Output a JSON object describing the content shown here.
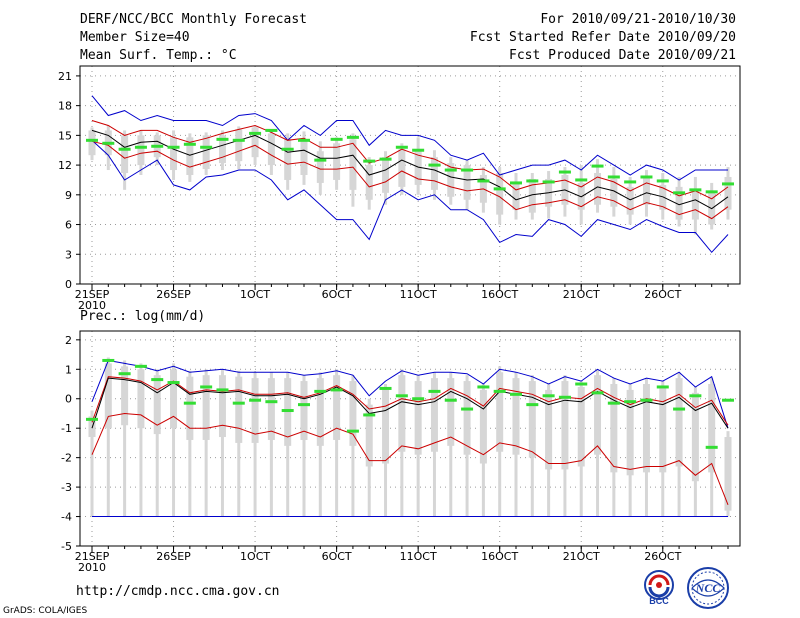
{
  "header": {
    "title": "DERF/NCC/BCC Monthly Forecast",
    "member_size": "Member Size=40",
    "variable": "Mean Surf. Temp.: °C",
    "period": "For 2010/09/21-2010/10/30",
    "start_date": "Fcst Started Refer Date 2010/09/20",
    "produced_date": "Fcst Produced Date 2010/09/21"
  },
  "footer": {
    "url": "http://cmdp.ncc.cma.gov.cn",
    "grads_credit": "GrADS: COLA/IGES",
    "logo_left_text": "BCC",
    "logo_right_text": "NCC"
  },
  "colors": {
    "mean": "#000000",
    "inner_band": "#cc0000",
    "outer_band": "#0000cc",
    "marker": "#33dd33",
    "box": "#d6d6d6",
    "grid": "#9a9a9a"
  },
  "chart_data": [
    {
      "type": "box",
      "title": "Mean Surf. Temp.: °C",
      "xlabel": "",
      "ylabel": "",
      "ylim": [
        0,
        22
      ],
      "yticks": [
        0,
        3,
        6,
        9,
        12,
        15,
        18,
        21
      ],
      "x_tick_labels": [
        {
          "day": 1,
          "label": "21SEP"
        },
        {
          "day": 6,
          "label": "26SEP"
        },
        {
          "day": 11,
          "label": "1OCT"
        },
        {
          "day": 16,
          "label": "6OCT"
        },
        {
          "day": 21,
          "label": "11OCT"
        },
        {
          "day": 26,
          "label": "16OCT"
        },
        {
          "day": 31,
          "label": "21OCT"
        },
        {
          "day": 36,
          "label": "26OCT"
        }
      ],
      "x_year_label": "2010",
      "days": 40,
      "series": [
        {
          "name": "ensemble mean",
          "values": [
            15.5,
            15.0,
            13.8,
            14.3,
            14.4,
            13.6,
            13.0,
            13.5,
            14.0,
            14.5,
            15.0,
            14.2,
            13.3,
            13.5,
            12.7,
            12.7,
            13.0,
            11.0,
            11.5,
            12.5,
            11.8,
            11.5,
            10.8,
            10.5,
            10.6,
            9.8,
            8.5,
            9.0,
            9.2,
            9.5,
            8.8,
            9.8,
            9.4,
            8.5,
            9.2,
            8.8,
            8.0,
            8.5,
            7.6,
            8.8
          ]
        },
        {
          "name": "upper inner",
          "values": [
            16.5,
            16.0,
            15.0,
            15.5,
            15.5,
            14.8,
            14.3,
            14.7,
            15.2,
            15.6,
            16.0,
            15.3,
            14.5,
            14.7,
            13.8,
            13.8,
            14.2,
            12.2,
            12.7,
            13.6,
            13.0,
            12.6,
            11.8,
            11.5,
            11.6,
            10.8,
            9.5,
            10.0,
            10.2,
            10.5,
            9.8,
            10.8,
            10.3,
            9.4,
            10.2,
            9.7,
            8.9,
            9.4,
            8.6,
            9.8
          ]
        },
        {
          "name": "lower inner",
          "values": [
            14.4,
            14.0,
            12.7,
            13.2,
            13.4,
            12.5,
            11.8,
            12.3,
            12.8,
            13.4,
            14.0,
            13.0,
            12.1,
            12.3,
            11.6,
            11.6,
            11.8,
            9.8,
            10.3,
            11.4,
            10.6,
            10.4,
            9.8,
            9.4,
            9.6,
            8.8,
            7.5,
            8.0,
            8.2,
            8.5,
            7.8,
            8.8,
            8.4,
            7.5,
            8.2,
            7.8,
            7.0,
            7.5,
            6.6,
            7.8
          ]
        },
        {
          "name": "maximum",
          "values": [
            19.0,
            17.0,
            17.5,
            16.5,
            17.0,
            16.5,
            16.5,
            16.5,
            16.0,
            17.0,
            17.2,
            16.5,
            14.5,
            16.0,
            15.0,
            16.5,
            16.5,
            14.0,
            15.5,
            15.0,
            15.0,
            14.5,
            13.0,
            12.5,
            13.2,
            11.0,
            11.5,
            12.0,
            12.0,
            12.5,
            11.5,
            13.0,
            12.0,
            11.0,
            12.0,
            11.5,
            10.5,
            11.5,
            11.5,
            11.5
          ]
        },
        {
          "name": "minimum",
          "values": [
            14.5,
            13.0,
            10.5,
            11.5,
            12.5,
            10.0,
            9.5,
            10.8,
            11.0,
            11.5,
            11.5,
            10.5,
            8.5,
            9.5,
            8.0,
            6.5,
            6.5,
            4.5,
            8.5,
            9.5,
            8.5,
            9.0,
            7.5,
            7.5,
            6.5,
            4.2,
            5.0,
            4.8,
            6.5,
            6.0,
            4.8,
            6.5,
            6.0,
            5.5,
            6.5,
            5.8,
            5.2,
            5.2,
            3.2,
            5.0
          ]
        },
        {
          "name": "box upper",
          "values": [
            15.5,
            15.5,
            15.0,
            15.0,
            15.0,
            14.8,
            14.8,
            15.0,
            15.0,
            15.6,
            15.8,
            15.2,
            14.6,
            14.6,
            13.4,
            14.2,
            14.6,
            12.0,
            12.8,
            13.6,
            13.4,
            12.8,
            12.2,
            12.0,
            11.0,
            11.2,
            10.2,
            10.6,
            10.6,
            11.0,
            10.2,
            11.2,
            10.6,
            9.8,
            10.8,
            10.0,
            9.8,
            9.6,
            9.2,
            10.8
          ]
        },
        {
          "name": "box lower",
          "values": [
            13.0,
            13.0,
            11.2,
            12.0,
            12.8,
            11.5,
            11.0,
            11.6,
            12.2,
            12.4,
            12.8,
            12.0,
            10.5,
            11.0,
            10.2,
            10.5,
            9.5,
            8.5,
            9.2,
            9.8,
            10.0,
            9.5,
            8.8,
            8.5,
            8.2,
            7.0,
            7.5,
            7.2,
            7.8,
            8.0,
            7.5,
            8.0,
            7.8,
            7.0,
            8.0,
            7.5,
            6.5,
            6.5,
            6.0,
            7.5
          ]
        },
        {
          "name": "whisker max",
          "values": [
            15.8,
            16.0,
            15.5,
            15.5,
            15.3,
            15.5,
            15.2,
            15.3,
            15.5,
            15.9,
            16.0,
            15.6,
            15.2,
            15.4,
            14.4,
            14.8,
            15.2,
            12.8,
            13.4,
            14.2,
            14.8,
            13.5,
            12.8,
            12.5,
            11.8,
            11.8,
            11.2,
            11.2,
            11.4,
            11.8,
            12.0,
            12.6,
            11.8,
            10.8,
            11.5,
            11.2,
            10.8,
            10.8,
            10.2,
            11.8
          ]
        },
        {
          "name": "whisker min",
          "values": [
            12.5,
            11.5,
            9.5,
            11.0,
            12.0,
            10.5,
            10.3,
            11.0,
            11.5,
            11.6,
            12.0,
            11.0,
            9.5,
            10.0,
            9.0,
            9.5,
            7.8,
            7.5,
            8.0,
            9.0,
            9.0,
            8.5,
            8.0,
            7.5,
            7.2,
            6.0,
            6.5,
            6.5,
            6.6,
            6.8,
            6.0,
            7.2,
            6.8,
            6.0,
            6.8,
            6.5,
            5.8,
            5.0,
            5.5,
            6.5
          ]
        },
        {
          "name": "median marker",
          "values": [
            14.5,
            14.2,
            13.6,
            13.8,
            13.9,
            13.8,
            14.1,
            13.8,
            14.6,
            14.5,
            15.2,
            15.5,
            13.6,
            14.5,
            12.5,
            14.6,
            14.8,
            12.4,
            12.6,
            13.8,
            13.5,
            12.0,
            11.5,
            11.5,
            10.4,
            9.6,
            10.2,
            10.4,
            10.3,
            11.3,
            10.5,
            11.9,
            10.8,
            10.3,
            10.8,
            10.4,
            9.2,
            9.5,
            9.3,
            10.1
          ]
        }
      ]
    },
    {
      "type": "box",
      "title": "Prec.: log(mm/d)",
      "xlabel": "",
      "ylabel": "",
      "ylim": [
        -5,
        2.3
      ],
      "yticks": [
        -5,
        -4,
        -3,
        -2,
        -1,
        0,
        1,
        2
      ],
      "x_tick_labels": [
        {
          "day": 1,
          "label": "21SEP"
        },
        {
          "day": 6,
          "label": "26SEP"
        },
        {
          "day": 11,
          "label": "1OCT"
        },
        {
          "day": 16,
          "label": "6OCT"
        },
        {
          "day": 21,
          "label": "11OCT"
        },
        {
          "day": 26,
          "label": "16OCT"
        },
        {
          "day": 31,
          "label": "21OCT"
        },
        {
          "day": 36,
          "label": "26OCT"
        }
      ],
      "x_year_label": "2010",
      "days": 40,
      "series": [
        {
          "name": "ensemble mean",
          "values": [
            -1.0,
            0.7,
            0.65,
            0.55,
            0.2,
            0.55,
            0.15,
            0.25,
            0.2,
            0.25,
            0.1,
            0.1,
            0.15,
            0.0,
            0.15,
            0.4,
            0.1,
            -0.5,
            -0.4,
            -0.1,
            -0.2,
            -0.1,
            0.25,
            0.0,
            -0.35,
            0.25,
            0.15,
            0.05,
            -0.2,
            -0.05,
            -0.1,
            0.25,
            -0.05,
            -0.3,
            -0.1,
            -0.2,
            0.05,
            -0.4,
            -0.15,
            -1.0
          ]
        },
        {
          "name": "upper inner",
          "values": [
            -0.8,
            0.75,
            0.7,
            0.6,
            0.3,
            0.6,
            0.2,
            0.3,
            0.25,
            0.3,
            0.15,
            0.15,
            0.2,
            0.05,
            0.2,
            0.45,
            0.15,
            -0.35,
            -0.25,
            0.0,
            -0.1,
            0.0,
            0.35,
            0.1,
            -0.25,
            0.35,
            0.25,
            0.15,
            -0.1,
            0.05,
            0.0,
            0.35,
            0.05,
            -0.2,
            0.0,
            -0.1,
            0.15,
            -0.3,
            -0.05,
            -0.9
          ]
        },
        {
          "name": "lower inner",
          "values": [
            -1.9,
            -0.6,
            -0.5,
            -0.55,
            -0.9,
            -0.6,
            -1.0,
            -1.0,
            -0.9,
            -1.0,
            -1.2,
            -1.1,
            -1.3,
            -1.1,
            -1.3,
            -1.0,
            -1.2,
            -2.1,
            -2.1,
            -1.6,
            -1.7,
            -1.5,
            -1.3,
            -1.6,
            -1.9,
            -1.5,
            -1.6,
            -1.8,
            -2.2,
            -2.2,
            -2.1,
            -1.6,
            -2.3,
            -2.4,
            -2.3,
            -2.3,
            -2.1,
            -2.6,
            -2.2,
            -3.6
          ]
        },
        {
          "name": "maximum",
          "values": [
            -0.1,
            1.3,
            1.2,
            1.1,
            0.95,
            1.1,
            0.9,
            0.95,
            1.0,
            0.9,
            0.9,
            0.9,
            0.9,
            0.8,
            0.85,
            0.95,
            0.8,
            0.1,
            0.6,
            0.95,
            0.8,
            0.9,
            0.9,
            0.85,
            0.5,
            1.0,
            0.9,
            0.75,
            0.5,
            0.75,
            0.6,
            1.0,
            0.7,
            0.5,
            0.7,
            0.6,
            0.9,
            0.4,
            0.75,
            -1.0
          ]
        },
        {
          "name": "minimum",
          "values": [
            -4.0,
            -4.0,
            -4.0,
            -4.0,
            -4.0,
            -4.0,
            -4.0,
            -4.0,
            -4.0,
            -4.0,
            -4.0,
            -4.0,
            -4.0,
            -4.0,
            -4.0,
            -4.0,
            -4.0,
            -4.0,
            -4.0,
            -4.0,
            -4.0,
            -4.0,
            -4.0,
            -4.0,
            -4.0,
            -4.0,
            -4.0,
            -4.0,
            -4.0,
            -4.0,
            -4.0,
            -4.0,
            -4.0,
            -4.0,
            -4.0,
            -4.0,
            -4.0,
            -4.0,
            -4.0,
            -4.0
          ]
        },
        {
          "name": "box upper",
          "values": [
            -0.6,
            1.2,
            1.1,
            1.0,
            0.8,
            1.0,
            0.75,
            0.8,
            0.8,
            0.75,
            0.7,
            0.7,
            0.7,
            0.6,
            0.7,
            0.8,
            0.6,
            -0.2,
            0.3,
            0.8,
            0.6,
            0.7,
            0.7,
            0.6,
            0.3,
            0.9,
            0.7,
            0.6,
            0.3,
            0.6,
            0.4,
            0.8,
            0.5,
            0.3,
            0.5,
            0.4,
            0.7,
            0.2,
            0.5,
            -1.3
          ]
        },
        {
          "name": "box lower",
          "values": [
            -1.3,
            -1.0,
            -0.9,
            -1.0,
            -1.2,
            -1.0,
            -1.4,
            -1.4,
            -1.3,
            -1.5,
            -1.5,
            -1.4,
            -1.6,
            -1.4,
            -1.6,
            -1.4,
            -1.6,
            -2.3,
            -2.2,
            -1.8,
            -1.9,
            -1.8,
            -1.6,
            -1.9,
            -2.2,
            -1.8,
            -1.9,
            -2.0,
            -2.4,
            -2.4,
            -2.3,
            -1.9,
            -2.5,
            -2.6,
            -2.5,
            -2.5,
            -2.3,
            -2.8,
            -2.5,
            -3.8
          ]
        },
        {
          "name": "whisker max",
          "values": [
            -0.4,
            1.4,
            1.3,
            1.2,
            1.0,
            1.2,
            0.95,
            1.0,
            1.0,
            0.95,
            0.9,
            0.9,
            0.9,
            0.8,
            0.9,
            1.0,
            0.8,
            0.0,
            0.5,
            1.0,
            0.8,
            0.9,
            0.9,
            0.8,
            0.5,
            1.1,
            0.9,
            0.8,
            0.5,
            0.8,
            0.6,
            1.0,
            0.7,
            0.5,
            0.7,
            0.6,
            0.9,
            0.4,
            0.7,
            -1.1
          ]
        },
        {
          "name": "whisker min",
          "values": [
            -4.0,
            -4.0,
            -4.0,
            -4.0,
            -4.0,
            -4.0,
            -4.0,
            -4.0,
            -4.0,
            -4.0,
            -4.0,
            -4.0,
            -4.0,
            -4.0,
            -4.0,
            -4.0,
            -4.0,
            -4.0,
            -4.0,
            -4.0,
            -4.0,
            -4.0,
            -4.0,
            -4.0,
            -4.0,
            -4.0,
            -4.0,
            -4.0,
            -4.0,
            -4.0,
            -4.0,
            -4.0,
            -4.0,
            -4.0,
            -4.0,
            -4.0,
            -4.0,
            -4.0,
            -4.0,
            -4.0
          ]
        },
        {
          "name": "median marker",
          "values": [
            -0.7,
            1.3,
            0.85,
            1.1,
            0.65,
            0.55,
            -0.15,
            0.4,
            0.3,
            -0.15,
            -0.05,
            -0.1,
            -0.4,
            -0.2,
            0.25,
            0.3,
            -1.1,
            -0.55,
            0.35,
            0.1,
            0.0,
            0.25,
            -0.05,
            -0.35,
            0.4,
            0.25,
            0.15,
            -0.2,
            0.1,
            0.05,
            0.5,
            0.2,
            -0.15,
            -0.1,
            -0.05,
            0.4,
            -0.35,
            0.1,
            -1.65,
            -0.05
          ]
        }
      ]
    }
  ]
}
